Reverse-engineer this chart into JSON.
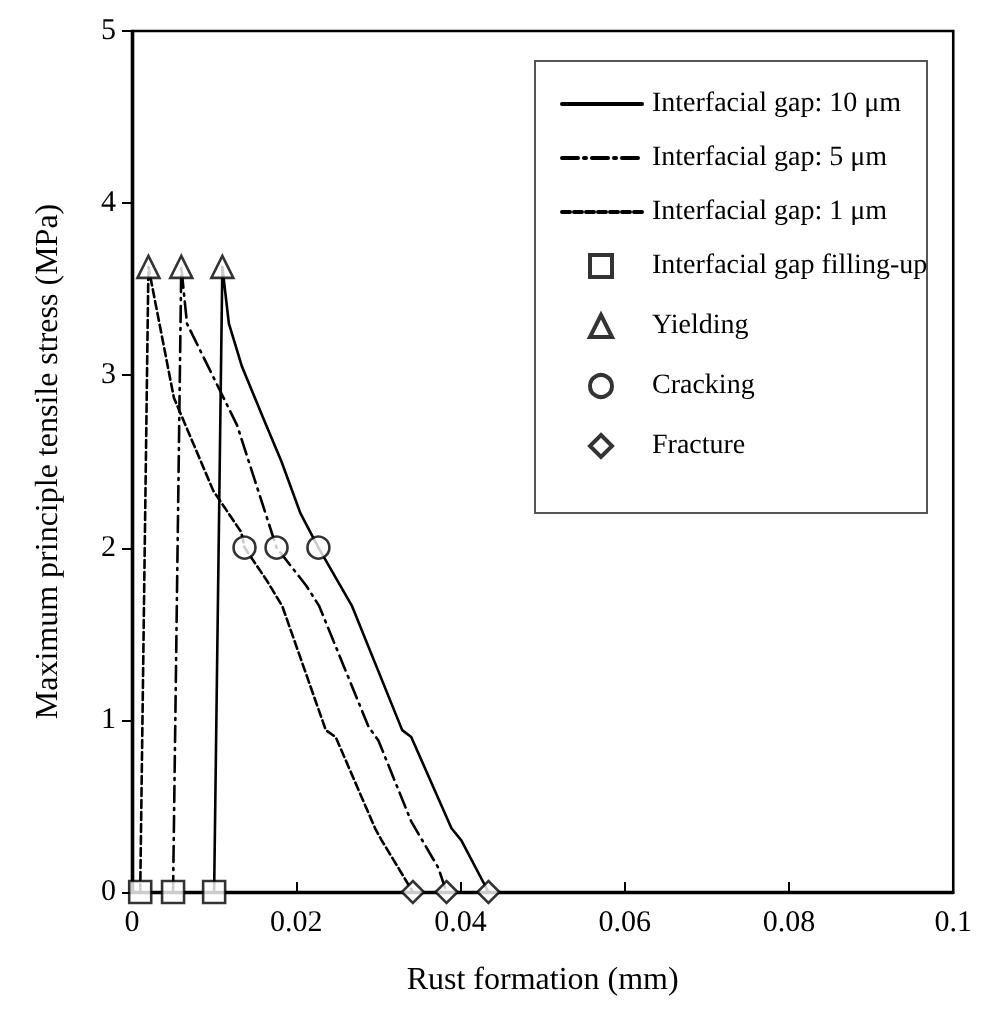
{
  "chart_data": {
    "type": "line",
    "xlabel": "Rust formation (mm)",
    "ylabel": "Maximum principle tensile stress (MPa)",
    "xlim": [
      0,
      0.1
    ],
    "ylim": [
      0,
      5
    ],
    "xticks": [
      0,
      0.02,
      0.04,
      0.06,
      0.08,
      0.1
    ],
    "yticks": [
      0,
      1,
      2,
      3,
      4,
      5
    ],
    "grid": false,
    "legend": "top right",
    "series": [
      {
        "name": "Interfacial gap: 10 μm",
        "line_style": "solid",
        "marker": "none",
        "color": "#000000",
        "x": [
          0.01,
          0.011,
          0.0118,
          0.0134,
          0.016,
          0.0182,
          0.0205,
          0.0227,
          0.0268,
          0.0329,
          0.034,
          0.0389,
          0.0401,
          0.0434
        ],
        "values": [
          0,
          3.63,
          3.3,
          3.05,
          2.75,
          2.5,
          2.2,
          2.0,
          1.66,
          0.94,
          0.9,
          0.37,
          0.3,
          0
        ]
      },
      {
        "name": "Interfacial gap: 5 μm",
        "line_style": "dashdot",
        "marker": "none",
        "color": "#000000",
        "x": [
          0.005,
          0.006,
          0.0067,
          0.0128,
          0.0176,
          0.0212,
          0.0228,
          0.0288,
          0.03,
          0.034,
          0.0373,
          0.0383
        ],
        "values": [
          0,
          3.63,
          3.3,
          2.71,
          2.0,
          1.78,
          1.66,
          0.96,
          0.88,
          0.41,
          0.14,
          0
        ]
      },
      {
        "name": "Interfacial gap: 1 μm",
        "line_style": "dashed",
        "marker": "none",
        "color": "#000000",
        "x": [
          0.001,
          0.002,
          0.0051,
          0.0099,
          0.0133,
          0.0137,
          0.0164,
          0.0183,
          0.0236,
          0.0248,
          0.0296,
          0.0304,
          0.0342
        ],
        "values": [
          0,
          3.63,
          2.87,
          2.33,
          2.09,
          2.0,
          1.81,
          1.66,
          0.94,
          0.9,
          0.37,
          0.3,
          0
        ]
      },
      {
        "name": "Interfacial gap filling-up",
        "type": "scatter",
        "marker": "square",
        "color": "#000000",
        "x": [
          0.001,
          0.005,
          0.01
        ],
        "values": [
          0,
          0,
          0
        ]
      },
      {
        "name": "Yielding",
        "type": "scatter",
        "marker": "triangle",
        "color": "#000000",
        "x": [
          0.002,
          0.006,
          0.011
        ],
        "values": [
          3.63,
          3.63,
          3.63
        ]
      },
      {
        "name": "Cracking",
        "type": "scatter",
        "marker": "circle",
        "color": "#000000",
        "x": [
          0.0137,
          0.0176,
          0.0227
        ],
        "values": [
          2.0,
          2.0,
          2.0
        ]
      },
      {
        "name": "Fracture",
        "type": "scatter",
        "marker": "diamond",
        "color": "#000000",
        "x": [
          0.0342,
          0.0383,
          0.0434
        ],
        "values": [
          0,
          0,
          0
        ]
      }
    ]
  }
}
